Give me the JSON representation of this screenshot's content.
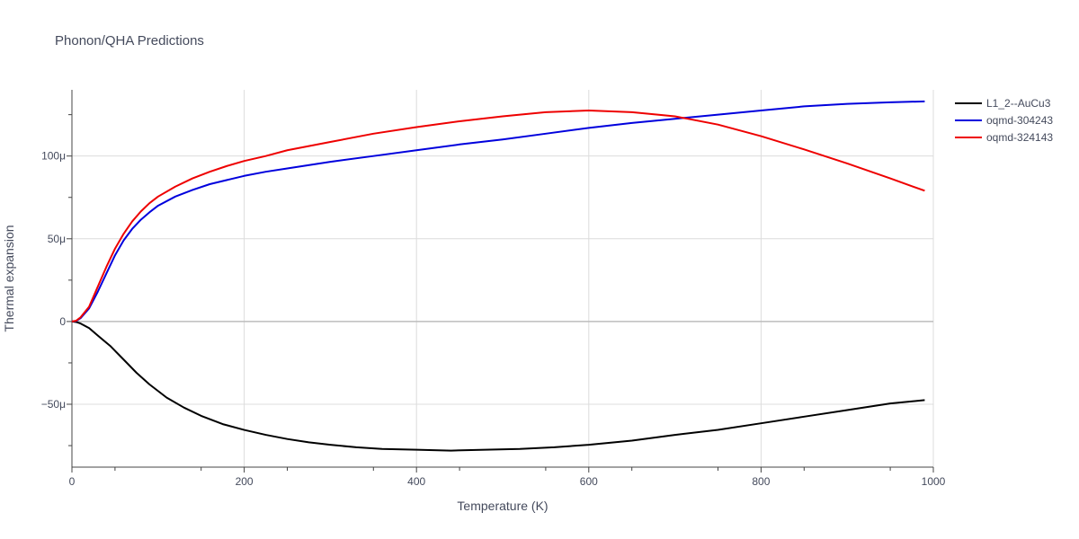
{
  "chart_data": {
    "type": "line",
    "title": "Phonon/QHA Predictions",
    "xlabel": "Temperature (K)",
    "ylabel": "Thermal expansion",
    "xlim": [
      0,
      1000
    ],
    "ylim": [
      -8.8e-05,
      0.00014
    ],
    "x_ticks": [
      0,
      200,
      400,
      600,
      800,
      1000
    ],
    "x_tick_labels": [
      "0",
      "200",
      "400",
      "600",
      "800",
      "1000"
    ],
    "y_ticks": [
      -5e-05,
      0,
      5e-05,
      0.0001
    ],
    "y_tick_labels": [
      "−50μ",
      "0",
      "50μ",
      "100μ"
    ],
    "grid": true,
    "legend_position": "top-right",
    "series": [
      {
        "name": "L1_2--AuCu3",
        "color": "#000000",
        "x": [
          0,
          5,
          10,
          20,
          30,
          45,
          60,
          75,
          90,
          110,
          130,
          150,
          175,
          200,
          225,
          250,
          275,
          300,
          330,
          360,
          400,
          440,
          480,
          520,
          560,
          600,
          650,
          700,
          750,
          800,
          850,
          900,
          950,
          990
        ],
        "y": [
          0,
          -3e-07,
          -1.2e-06,
          -4e-06,
          -8.5e-06,
          -1.5e-05,
          -2.3e-05,
          -3.1e-05,
          -3.8e-05,
          -4.6e-05,
          -5.2e-05,
          -5.7e-05,
          -6.2e-05,
          -6.55e-05,
          -6.85e-05,
          -7.1e-05,
          -7.3e-05,
          -7.45e-05,
          -7.6e-05,
          -7.7e-05,
          -7.75e-05,
          -7.8e-05,
          -7.75e-05,
          -7.7e-05,
          -7.6e-05,
          -7.45e-05,
          -7.2e-05,
          -6.85e-05,
          -6.55e-05,
          -6.15e-05,
          -5.75e-05,
          -5.35e-05,
          -4.95e-05,
          -4.75e-05
        ]
      },
      {
        "name": "oqmd-304243",
        "color": "#0000dd",
        "x": [
          0,
          5,
          10,
          20,
          30,
          40,
          50,
          60,
          70,
          80,
          90,
          100,
          120,
          140,
          160,
          180,
          200,
          225,
          250,
          300,
          350,
          400,
          450,
          500,
          550,
          600,
          650,
          700,
          750,
          800,
          850,
          900,
          950,
          990
        ],
        "y": [
          0,
          3e-07,
          2e-06,
          8e-06,
          1.8e-05,
          2.9e-05,
          4e-05,
          4.9e-05,
          5.6e-05,
          6.15e-05,
          6.6e-05,
          7e-05,
          7.55e-05,
          7.95e-05,
          8.3e-05,
          8.55e-05,
          8.8e-05,
          9.05e-05,
          9.25e-05,
          9.65e-05,
          0.0001,
          0.0001035,
          0.000107,
          0.00011,
          0.0001135,
          0.000117,
          0.00012,
          0.0001225,
          0.000125,
          0.0001275,
          0.00013,
          0.0001315,
          0.0001325,
          0.000133
        ]
      },
      {
        "name": "oqmd-324143",
        "color": "#ee0000",
        "x": [
          0,
          5,
          10,
          20,
          30,
          40,
          50,
          60,
          70,
          80,
          90,
          100,
          120,
          140,
          160,
          180,
          200,
          225,
          250,
          300,
          350,
          400,
          450,
          500,
          550,
          600,
          650,
          700,
          750,
          800,
          850,
          900,
          950,
          990
        ],
        "y": [
          0,
          5e-07,
          2.5e-06,
          9e-06,
          2.1e-05,
          3.3e-05,
          4.4e-05,
          5.3e-05,
          6.05e-05,
          6.65e-05,
          7.15e-05,
          7.55e-05,
          8.15e-05,
          8.65e-05,
          9.05e-05,
          9.4e-05,
          9.7e-05,
          0.0001,
          0.0001035,
          0.0001085,
          0.0001135,
          0.0001175,
          0.000121,
          0.000124,
          0.0001265,
          0.0001275,
          0.0001265,
          0.000124,
          0.000119,
          0.000112,
          0.000104,
          9.55e-05,
          8.65e-05,
          7.9e-05
        ]
      }
    ]
  }
}
